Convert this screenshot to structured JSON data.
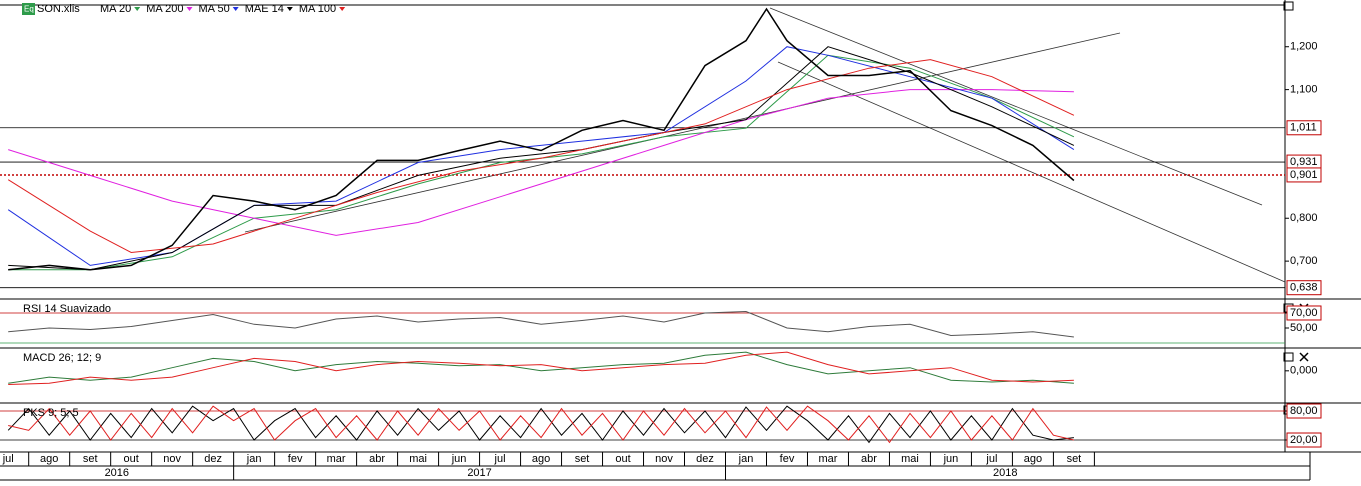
{
  "chart_data": [
    {
      "type": "line",
      "title": "SON.xlis",
      "color": "#000000",
      "x": [
        0,
        1,
        2,
        3,
        4,
        5,
        6,
        7,
        8,
        9,
        10,
        11,
        12,
        13,
        14,
        15,
        16,
        17,
        18,
        18.5,
        19,
        20,
        21,
        22,
        23,
        24,
        25,
        26
      ],
      "values": [
        0.68,
        0.69,
        0.68,
        0.69,
        0.737,
        0.853,
        0.84,
        0.82,
        0.853,
        0.935,
        0.935,
        0.958,
        0.98,
        0.958,
        1.005,
        1.028,
        1.005,
        1.156,
        1.214,
        1.288,
        1.214,
        1.133,
        1.133,
        1.144,
        1.051,
        1.016,
        0.97,
        0.888
      ],
      "xlim": [
        -0.2,
        31.15
      ],
      "ylim": [
        0.614,
        1.295
      ],
      "yticks": [
        {
          "value": 0.7,
          "label": "0,700"
        },
        {
          "value": 0.8,
          "label": "0,800"
        },
        {
          "value": 1.1,
          "label": "1,100"
        },
        {
          "value": 1.2,
          "label": "1,200"
        }
      ],
      "xticks": [
        {
          "value": 0,
          "label": "jul"
        },
        {
          "value": 1,
          "label": "ago"
        },
        {
          "value": 2,
          "label": "set"
        },
        {
          "value": 3,
          "label": "out"
        },
        {
          "value": 4,
          "label": "nov"
        },
        {
          "value": 5,
          "label": "dez"
        },
        {
          "value": 6,
          "label": "jan"
        },
        {
          "value": 7,
          "label": "fev"
        },
        {
          "value": 8,
          "label": "mar"
        },
        {
          "value": 9,
          "label": "abr"
        },
        {
          "value": 10,
          "label": "mai"
        },
        {
          "value": 11,
          "label": "jun"
        },
        {
          "value": 12,
          "label": "jul"
        },
        {
          "value": 13,
          "label": "ago"
        },
        {
          "value": 14,
          "label": "set"
        },
        {
          "value": 15,
          "label": "out"
        },
        {
          "value": 16,
          "label": "nov"
        },
        {
          "value": 17,
          "label": "dez"
        },
        {
          "value": 18,
          "label": "jan"
        },
        {
          "value": 19,
          "label": "fev"
        },
        {
          "value": 20,
          "label": "mar"
        },
        {
          "value": 21,
          "label": "abr"
        },
        {
          "value": 22,
          "label": "mai"
        },
        {
          "value": 23,
          "label": "jun"
        },
        {
          "value": 24,
          "label": "jul"
        },
        {
          "value": 25,
          "label": "ago"
        },
        {
          "value": 26,
          "label": "set"
        }
      ],
      "year_labels": [
        "2016",
        "2017",
        "2018"
      ],
      "levels": [
        {
          "value": 1.011,
          "label": "1,011",
          "color": "#000000",
          "text_color": "#c00000"
        },
        {
          "value": 0.931,
          "label": "0,931",
          "color": "#000000",
          "text_color": "#c00000"
        },
        {
          "value": 0.901,
          "label": "0,901",
          "color": "#c00000",
          "text_color": "#c00000"
        },
        {
          "value": 0.638,
          "label": "0,638",
          "color": "#000000",
          "text_color": "#c00000"
        }
      ],
      "series": [
        {
          "name": "MA 20",
          "color": "#2e9b4a",
          "x": [
            0,
            2,
            4,
            6,
            8,
            10,
            12,
            14,
            16,
            18,
            20,
            22,
            24,
            26
          ],
          "values": [
            0.68,
            0.68,
            0.71,
            0.8,
            0.82,
            0.88,
            0.93,
            0.95,
            0.99,
            1.01,
            1.18,
            1.15,
            1.08,
            0.99
          ]
        },
        {
          "name": "MA 200",
          "color": "#e020e0",
          "x": [
            0,
            2,
            4,
            6,
            8,
            10,
            12,
            14,
            16,
            18,
            20,
            22,
            24,
            26
          ],
          "values": [
            0.96,
            0.9,
            0.84,
            0.8,
            0.76,
            0.79,
            0.85,
            0.91,
            0.97,
            1.03,
            1.08,
            1.1,
            1.1,
            1.095
          ]
        },
        {
          "name": "MA 50",
          "color": "#2030e0",
          "x": [
            0,
            2,
            4,
            6,
            8,
            10,
            12,
            14,
            16,
            18,
            19,
            20,
            22,
            24,
            26
          ],
          "values": [
            0.82,
            0.69,
            0.72,
            0.83,
            0.84,
            0.93,
            0.96,
            0.98,
            1.0,
            1.12,
            1.2,
            1.18,
            1.13,
            1.08,
            0.96
          ]
        },
        {
          "name": "MAE 14",
          "color": "#000000",
          "x": [
            0,
            2,
            4,
            6,
            8,
            10,
            12,
            14,
            16,
            18,
            20,
            22,
            24,
            26
          ],
          "values": [
            0.69,
            0.68,
            0.72,
            0.83,
            0.83,
            0.9,
            0.94,
            0.96,
            1.0,
            1.03,
            1.2,
            1.14,
            1.06,
            0.97
          ]
        },
        {
          "name": "MA 100",
          "color": "#e02020",
          "x": [
            0,
            2,
            3,
            5,
            7,
            9,
            11,
            13,
            15,
            17,
            19,
            21,
            22.5,
            24,
            26
          ],
          "values": [
            0.89,
            0.77,
            0.72,
            0.74,
            0.8,
            0.86,
            0.91,
            0.94,
            0.98,
            1.02,
            1.1,
            1.15,
            1.17,
            1.13,
            1.04
          ]
        }
      ]
    },
    {
      "type": "line",
      "title": "RSI 14 Suavizado",
      "ylim": [
        24.7,
        87.3
      ],
      "yticks": [
        {
          "value": 70,
          "label": "70,00"
        },
        {
          "value": 50,
          "label": "50,00"
        }
      ],
      "levels": [
        {
          "value": 70,
          "color": "#c00000"
        },
        {
          "value": 30,
          "color": "#2e9b4a"
        }
      ],
      "series": [
        {
          "color": "#555555",
          "x": [
            0,
            1,
            2,
            3,
            4,
            5,
            6,
            7,
            8,
            9,
            10,
            11,
            12,
            13,
            14,
            15,
            16,
            17,
            18,
            19,
            20,
            21,
            22,
            23,
            24,
            25,
            26
          ],
          "values": [
            45,
            50,
            48,
            52,
            60,
            68,
            55,
            50,
            62,
            66,
            58,
            62,
            64,
            55,
            60,
            66,
            58,
            70,
            72,
            50,
            45,
            52,
            55,
            40,
            42,
            45,
            38
          ]
        }
      ]
    },
    {
      "type": "line",
      "title": "MACD 26; 12; 9",
      "ylim": [
        -0.05,
        0.035
      ],
      "yticks": [
        {
          "value": 0,
          "label": "0,000"
        }
      ],
      "series": [
        {
          "color": "#2e7b3a",
          "x": [
            0,
            1,
            2,
            3,
            4,
            5,
            6,
            7,
            8,
            9,
            10,
            11,
            12,
            13,
            14,
            15,
            16,
            17,
            18,
            19,
            20,
            21,
            22,
            23,
            24,
            25,
            26
          ],
          "values": [
            -0.02,
            -0.01,
            -0.015,
            -0.01,
            0.005,
            0.02,
            0.015,
            0.0,
            0.01,
            0.015,
            0.012,
            0.008,
            0.01,
            0.0,
            0.005,
            0.01,
            0.012,
            0.025,
            0.03,
            0.01,
            -0.005,
            0.0,
            0.005,
            -0.015,
            -0.018,
            -0.015,
            -0.02
          ]
        },
        {
          "color": "#e02020",
          "x": [
            0,
            1,
            2,
            3,
            4,
            5,
            6,
            7,
            8,
            9,
            10,
            11,
            12,
            13,
            14,
            15,
            16,
            17,
            18,
            19,
            20,
            21,
            22,
            23,
            24,
            25,
            26
          ],
          "values": [
            -0.022,
            -0.02,
            -0.01,
            -0.015,
            -0.01,
            0.005,
            0.02,
            0.015,
            0.0,
            0.01,
            0.015,
            0.012,
            0.008,
            0.01,
            0.0,
            0.005,
            0.01,
            0.012,
            0.025,
            0.03,
            0.01,
            -0.005,
            0.0,
            0.005,
            -0.015,
            -0.018,
            -0.015
          ]
        }
      ]
    },
    {
      "type": "line",
      "title": "PKS 9; 5; 5",
      "ylim": [
        -4.8,
        94.5
      ],
      "yticks": [
        {
          "value": 80,
          "label": "80,00"
        },
        {
          "value": 20,
          "label": "20,00"
        }
      ],
      "levels": [
        {
          "value": 80,
          "color": "#c00000"
        },
        {
          "value": 20,
          "color": "#000000"
        }
      ],
      "series": [
        {
          "color": "#000000",
          "x": [
            0,
            0.5,
            1,
            1.5,
            2,
            2.5,
            3,
            3.5,
            4,
            4.5,
            5,
            5.5,
            6,
            6.5,
            7,
            7.5,
            8,
            8.5,
            9,
            9.5,
            10,
            10.5,
            11,
            11.5,
            12,
            12.5,
            13,
            13.5,
            14,
            14.5,
            15,
            15.5,
            16,
            16.5,
            17,
            17.5,
            18,
            18.5,
            19,
            19.5,
            20,
            20.5,
            21,
            21.5,
            22,
            22.5,
            23,
            23.5,
            24,
            24.5,
            25,
            25.5,
            26
          ],
          "values": [
            40,
            85,
            30,
            80,
            20,
            75,
            25,
            85,
            35,
            90,
            60,
            85,
            20,
            60,
            85,
            25,
            70,
            20,
            80,
            30,
            85,
            40,
            80,
            20,
            70,
            25,
            85,
            30,
            75,
            20,
            80,
            30,
            85,
            35,
            80,
            25,
            88,
            40,
            90,
            60,
            20,
            70,
            15,
            75,
            25,
            80,
            20,
            70,
            20,
            85,
            30,
            20,
            25
          ]
        },
        {
          "color": "#e02020",
          "x": [
            0,
            0.5,
            1,
            1.5,
            2,
            2.5,
            3,
            3.5,
            4,
            4.5,
            5,
            5.5,
            6,
            6.5,
            7,
            7.5,
            8,
            8.5,
            9,
            9.5,
            10,
            10.5,
            11,
            11.5,
            12,
            12.5,
            13,
            13.5,
            14,
            14.5,
            15,
            15.5,
            16,
            16.5,
            17,
            17.5,
            18,
            18.5,
            19,
            19.5,
            20,
            20.5,
            21,
            21.5,
            22,
            22.5,
            23,
            23.5,
            24,
            24.5,
            25,
            25.5,
            26
          ],
          "values": [
            50,
            40,
            85,
            30,
            80,
            20,
            75,
            25,
            85,
            35,
            90,
            60,
            85,
            20,
            60,
            85,
            25,
            70,
            20,
            80,
            30,
            85,
            40,
            80,
            20,
            70,
            25,
            85,
            30,
            75,
            20,
            80,
            30,
            85,
            35,
            80,
            25,
            88,
            40,
            90,
            60,
            20,
            70,
            15,
            75,
            25,
            80,
            20,
            70,
            20,
            85,
            30,
            20
          ]
        }
      ]
    }
  ]
}
